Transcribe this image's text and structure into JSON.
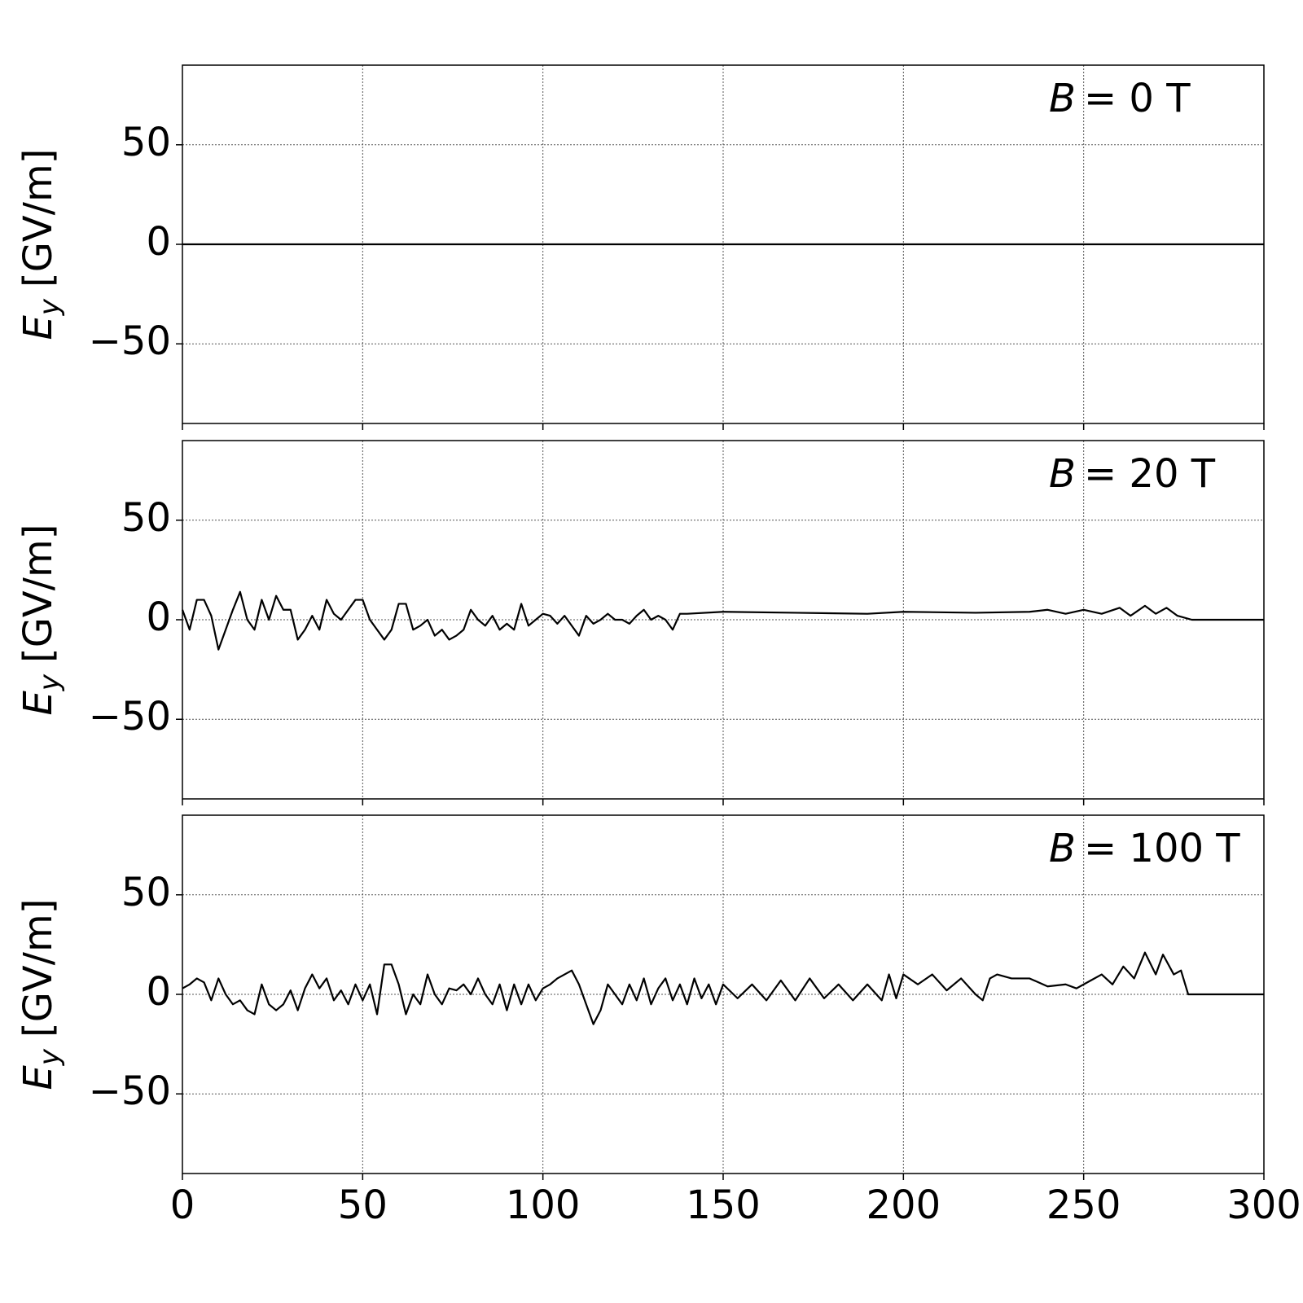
{
  "chart_data": [
    {
      "type": "line",
      "annotation": {
        "symbol": "B",
        "text": "= 0 T"
      },
      "ylabel": {
        "symbol": "E",
        "subscript": "y",
        "unit": "[GV/m]"
      },
      "x": [
        0,
        300
      ],
      "series": [
        {
          "color": "#000000",
          "values": [
            0,
            0
          ]
        }
      ],
      "xlim": [
        0,
        300
      ],
      "xticks": [
        0,
        50,
        100,
        150,
        200,
        250,
        300
      ],
      "ylim": [
        -90,
        90
      ],
      "yticks": [
        {
          "value": -50,
          "label": "−50"
        },
        0,
        50
      ],
      "grid": true
    },
    {
      "type": "line",
      "annotation": {
        "symbol": "B",
        "text": "= 20 T"
      },
      "ylabel": {
        "symbol": "E",
        "subscript": "y",
        "unit": "[GV/m]"
      },
      "x": [
        0,
        2,
        4,
        6,
        8,
        10,
        12,
        14,
        16,
        18,
        20,
        22,
        24,
        26,
        28,
        30,
        32,
        34,
        36,
        38,
        40,
        42,
        44,
        46,
        48,
        50,
        52,
        54,
        56,
        58,
        60,
        62,
        64,
        66,
        68,
        70,
        72,
        74,
        76,
        78,
        80,
        82,
        84,
        86,
        88,
        90,
        92,
        94,
        96,
        98,
        100,
        102,
        104,
        106,
        108,
        110,
        112,
        114,
        116,
        118,
        120,
        122,
        124,
        126,
        128,
        130,
        132,
        134,
        136,
        138,
        140,
        150,
        170,
        190,
        200,
        220,
        235,
        240,
        245,
        250,
        255,
        260,
        263,
        267,
        270,
        273,
        276,
        280,
        300
      ],
      "series": [
        {
          "color": "#000000",
          "values": [
            5,
            -5,
            10,
            10,
            2,
            -15,
            -5,
            5,
            14,
            0,
            -5,
            10,
            0,
            12,
            5,
            5,
            -10,
            -5,
            2,
            -5,
            10,
            3,
            0,
            5,
            10,
            10,
            0,
            -5,
            -10,
            -5,
            8,
            8,
            -5,
            -3,
            0,
            -8,
            -5,
            -10,
            -8,
            -5,
            5,
            0,
            -3,
            2,
            -5,
            -2,
            -5,
            8,
            -3,
            0,
            3,
            2,
            -2,
            2,
            -3,
            -8,
            2,
            -2,
            0,
            3,
            0,
            0,
            -2,
            2,
            5,
            0,
            2,
            0,
            -5,
            3,
            3,
            4,
            3.5,
            3,
            4,
            3.5,
            4,
            5,
            3,
            5,
            3,
            6,
            2,
            7,
            3,
            6,
            2,
            0,
            0
          ]
        }
      ],
      "xlim": [
        0,
        300
      ],
      "xticks": [
        0,
        50,
        100,
        150,
        200,
        250,
        300
      ],
      "ylim": [
        -90,
        90
      ],
      "yticks": [
        {
          "value": -50,
          "label": "−50"
        },
        0,
        50
      ],
      "grid": true
    },
    {
      "type": "line",
      "annotation": {
        "symbol": "B",
        "text": "= 100 T"
      },
      "ylabel": {
        "symbol": "E",
        "subscript": "y",
        "unit": "[GV/m]"
      },
      "x": [
        0,
        2,
        4,
        6,
        8,
        10,
        12,
        14,
        16,
        18,
        20,
        22,
        24,
        26,
        28,
        30,
        32,
        34,
        36,
        38,
        40,
        42,
        44,
        46,
        48,
        50,
        52,
        54,
        56,
        58,
        60,
        62,
        64,
        66,
        68,
        70,
        72,
        74,
        76,
        78,
        80,
        82,
        84,
        86,
        88,
        90,
        92,
        94,
        96,
        98,
        100,
        102,
        104,
        106,
        108,
        110,
        112,
        114,
        116,
        118,
        120,
        122,
        124,
        126,
        128,
        130,
        132,
        134,
        136,
        138,
        140,
        142,
        144,
        146,
        148,
        150,
        154,
        158,
        162,
        166,
        170,
        174,
        178,
        182,
        186,
        190,
        194,
        196,
        198,
        200,
        204,
        208,
        212,
        216,
        220,
        222,
        224,
        226,
        230,
        235,
        240,
        245,
        248,
        252,
        255,
        258,
        261,
        264,
        267,
        270,
        272,
        275,
        277,
        279,
        300
      ],
      "series": [
        {
          "color": "#000000",
          "values": [
            3,
            5,
            8,
            6,
            -3,
            8,
            0,
            -5,
            -3,
            -8,
            -10,
            5,
            -5,
            -8,
            -5,
            2,
            -8,
            3,
            10,
            3,
            8,
            -3,
            2,
            -5,
            5,
            -3,
            5,
            -10,
            15,
            15,
            5,
            -10,
            0,
            -5,
            10,
            0,
            -5,
            3,
            2,
            5,
            0,
            8,
            0,
            -5,
            5,
            -8,
            5,
            -5,
            5,
            -3,
            3,
            5,
            8,
            10,
            12,
            5,
            -5,
            -15,
            -8,
            5,
            0,
            -5,
            5,
            -3,
            8,
            -5,
            3,
            8,
            -3,
            5,
            -5,
            8,
            -2,
            5,
            -5,
            5,
            -2,
            5,
            -3,
            7,
            -3,
            8,
            -2,
            5,
            -3,
            5,
            -3,
            10,
            -2,
            10,
            5,
            10,
            2,
            8,
            0,
            -3,
            8,
            10,
            8,
            8,
            4,
            5,
            3,
            7,
            10,
            5,
            14,
            8,
            21,
            10,
            20,
            10,
            12,
            0,
            0
          ]
        }
      ],
      "xlim": [
        0,
        300
      ],
      "xticks": [
        0,
        50,
        100,
        150,
        200,
        250,
        300
      ],
      "ylim": [
        -90,
        90
      ],
      "yticks": [
        {
          "value": -50,
          "label": "−50"
        },
        0,
        50
      ],
      "grid": true
    }
  ]
}
